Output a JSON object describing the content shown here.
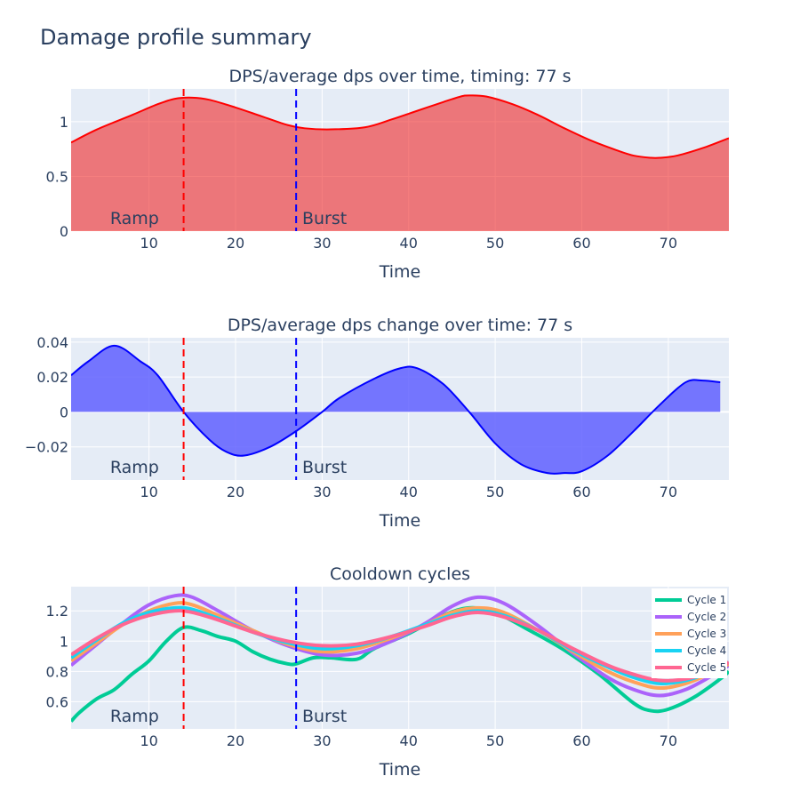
{
  "title": "Damage profile summary",
  "chart_data": [
    {
      "type": "area",
      "title": "DPS/average dps over time, timing: 77 s",
      "xlabel": "Time",
      "ylabel": "",
      "xlim": [
        1,
        77
      ],
      "ylim": [
        0,
        1.3
      ],
      "xticks": [
        10,
        20,
        30,
        40,
        50,
        60,
        70
      ],
      "yticks": [
        0,
        0.5,
        1
      ],
      "ytick_labels": [
        "0",
        "0.5",
        "1"
      ],
      "grid": true,
      "series": [
        {
          "color": "#ff0000",
          "fill": "rgba(240,40,40,0.6)",
          "x": [
            1,
            4,
            8,
            11,
            13,
            15,
            17,
            20,
            23,
            26,
            28,
            31,
            35,
            38,
            41,
            44,
            46,
            47,
            49,
            52,
            55,
            58,
            61,
            64,
            66,
            68,
            69,
            71,
            74,
            77
          ],
          "y": [
            0.81,
            0.93,
            1.06,
            1.16,
            1.21,
            1.22,
            1.2,
            1.13,
            1.05,
            0.97,
            0.94,
            0.93,
            0.95,
            1.02,
            1.1,
            1.18,
            1.23,
            1.24,
            1.23,
            1.16,
            1.06,
            0.94,
            0.83,
            0.74,
            0.69,
            0.67,
            0.67,
            0.69,
            0.76,
            0.85
          ]
        }
      ],
      "markers": [
        {
          "x": 14,
          "color": "#ff0000",
          "label": "Ramp",
          "label_x": 5.5
        },
        {
          "x": 27,
          "color": "#0000ff",
          "label": "Burst",
          "label_x": 27.7
        }
      ]
    },
    {
      "type": "area",
      "title": "DPS/average dps change over time: 77 s",
      "xlabel": "Time",
      "ylabel": "",
      "xlim": [
        1,
        77
      ],
      "ylim": [
        -0.039,
        0.0425
      ],
      "xticks": [
        10,
        20,
        30,
        40,
        50,
        60,
        70
      ],
      "yticks": [
        -0.02,
        0,
        0.02,
        0.04
      ],
      "ytick_labels": [
        "−0.02",
        "0",
        "0.02",
        "0.04"
      ],
      "grid": true,
      "series": [
        {
          "color": "#0000ff",
          "fill": "rgba(96,96,255,0.85)",
          "x": [
            1,
            3,
            6,
            9,
            11,
            14,
            17,
            19,
            21,
            24,
            27,
            30,
            32,
            36,
            39,
            41,
            44,
            47,
            50,
            53,
            56,
            58,
            60,
            63,
            66,
            69,
            72,
            74,
            76
          ],
          "y": [
            0.021,
            0.029,
            0.038,
            0.029,
            0.021,
            0.0,
            -0.016,
            -0.023,
            -0.025,
            -0.02,
            -0.011,
            0.0,
            0.008,
            0.019,
            0.025,
            0.025,
            0.016,
            0.0,
            -0.018,
            -0.03,
            -0.035,
            -0.035,
            -0.034,
            -0.025,
            -0.011,
            0.004,
            0.017,
            0.018,
            0.017
          ]
        }
      ],
      "markers": [
        {
          "x": 14,
          "color": "#ff0000",
          "label": "Ramp",
          "label_x": 5.5
        },
        {
          "x": 27,
          "color": "#0000ff",
          "label": "Burst",
          "label_x": 27.7
        }
      ]
    },
    {
      "type": "line",
      "title": "Cooldown cycles",
      "xlabel": "Time",
      "ylabel": "",
      "xlim": [
        1,
        77
      ],
      "ylim": [
        0.42,
        1.36
      ],
      "xticks": [
        10,
        20,
        30,
        40,
        50,
        60,
        70
      ],
      "yticks": [
        0.6,
        0.8,
        1,
        1.2
      ],
      "ytick_labels": [
        "0.6",
        "0.8",
        "1",
        "1.2"
      ],
      "grid": true,
      "legend": "top-right",
      "series": [
        {
          "name": "Cycle 1",
          "color": "#00cc96",
          "x": [
            1,
            2,
            4,
            6,
            8,
            10,
            12,
            14,
            16,
            18,
            20,
            22,
            24,
            26,
            27,
            29,
            31,
            34,
            36,
            40,
            44,
            47,
            50,
            54,
            58,
            62,
            66,
            68,
            70,
            73,
            76,
            77
          ],
          "y": [
            0.47,
            0.53,
            0.62,
            0.68,
            0.78,
            0.87,
            1.0,
            1.09,
            1.07,
            1.03,
            1.0,
            0.93,
            0.88,
            0.85,
            0.85,
            0.89,
            0.89,
            0.88,
            0.95,
            1.05,
            1.17,
            1.22,
            1.19,
            1.07,
            0.94,
            0.78,
            0.59,
            0.54,
            0.55,
            0.63,
            0.75,
            0.8
          ]
        },
        {
          "name": "Cycle 2",
          "color": "#ab63fa",
          "x": [
            1,
            4,
            7,
            10,
            13,
            15,
            18,
            22,
            26,
            30,
            34,
            38,
            42,
            45,
            48,
            51,
            55,
            59,
            63,
            66,
            69,
            72,
            75,
            77
          ],
          "y": [
            0.84,
            0.98,
            1.12,
            1.24,
            1.3,
            1.29,
            1.2,
            1.07,
            0.97,
            0.91,
            0.92,
            1.0,
            1.12,
            1.23,
            1.29,
            1.25,
            1.1,
            0.92,
            0.76,
            0.68,
            0.64,
            0.68,
            0.77,
            0.84
          ]
        },
        {
          "name": "Cycle 3",
          "color": "#ffa15a",
          "x": [
            1,
            4,
            7,
            10,
            13,
            15,
            18,
            22,
            26,
            30,
            34,
            38,
            42,
            45,
            48,
            51,
            55,
            59,
            63,
            66,
            69,
            72,
            75,
            77
          ],
          "y": [
            0.87,
            0.99,
            1.11,
            1.2,
            1.25,
            1.24,
            1.17,
            1.07,
            0.98,
            0.93,
            0.95,
            1.02,
            1.11,
            1.19,
            1.22,
            1.19,
            1.07,
            0.93,
            0.8,
            0.73,
            0.69,
            0.72,
            0.79,
            0.85
          ]
        },
        {
          "name": "Cycle 4",
          "color": "#19d3f3",
          "x": [
            1,
            4,
            7,
            10,
            13,
            15,
            18,
            22,
            26,
            30,
            34,
            38,
            42,
            45,
            48,
            51,
            55,
            59,
            63,
            66,
            69,
            72,
            75,
            77
          ],
          "y": [
            0.89,
            1.01,
            1.12,
            1.19,
            1.22,
            1.21,
            1.15,
            1.06,
            0.99,
            0.95,
            0.97,
            1.03,
            1.11,
            1.17,
            1.2,
            1.17,
            1.07,
            0.94,
            0.83,
            0.76,
            0.72,
            0.74,
            0.8,
            0.86
          ]
        },
        {
          "name": "Cycle 5",
          "color": "#ff6692",
          "x": [
            1,
            4,
            7,
            10,
            13,
            15,
            18,
            22,
            26,
            30,
            34,
            38,
            42,
            45,
            48,
            51,
            55,
            59,
            63,
            66,
            69,
            72,
            75,
            77
          ],
          "y": [
            0.91,
            1.02,
            1.11,
            1.17,
            1.2,
            1.19,
            1.14,
            1.06,
            1.0,
            0.97,
            0.98,
            1.03,
            1.1,
            1.16,
            1.19,
            1.16,
            1.07,
            0.95,
            0.84,
            0.78,
            0.74,
            0.75,
            0.8,
            0.86
          ]
        }
      ],
      "markers": [
        {
          "x": 14,
          "color": "#ff0000",
          "label": "Ramp",
          "label_x": 5.5
        },
        {
          "x": 27,
          "color": "#0000ff",
          "label": "Burst",
          "label_x": 27.7
        }
      ]
    }
  ]
}
